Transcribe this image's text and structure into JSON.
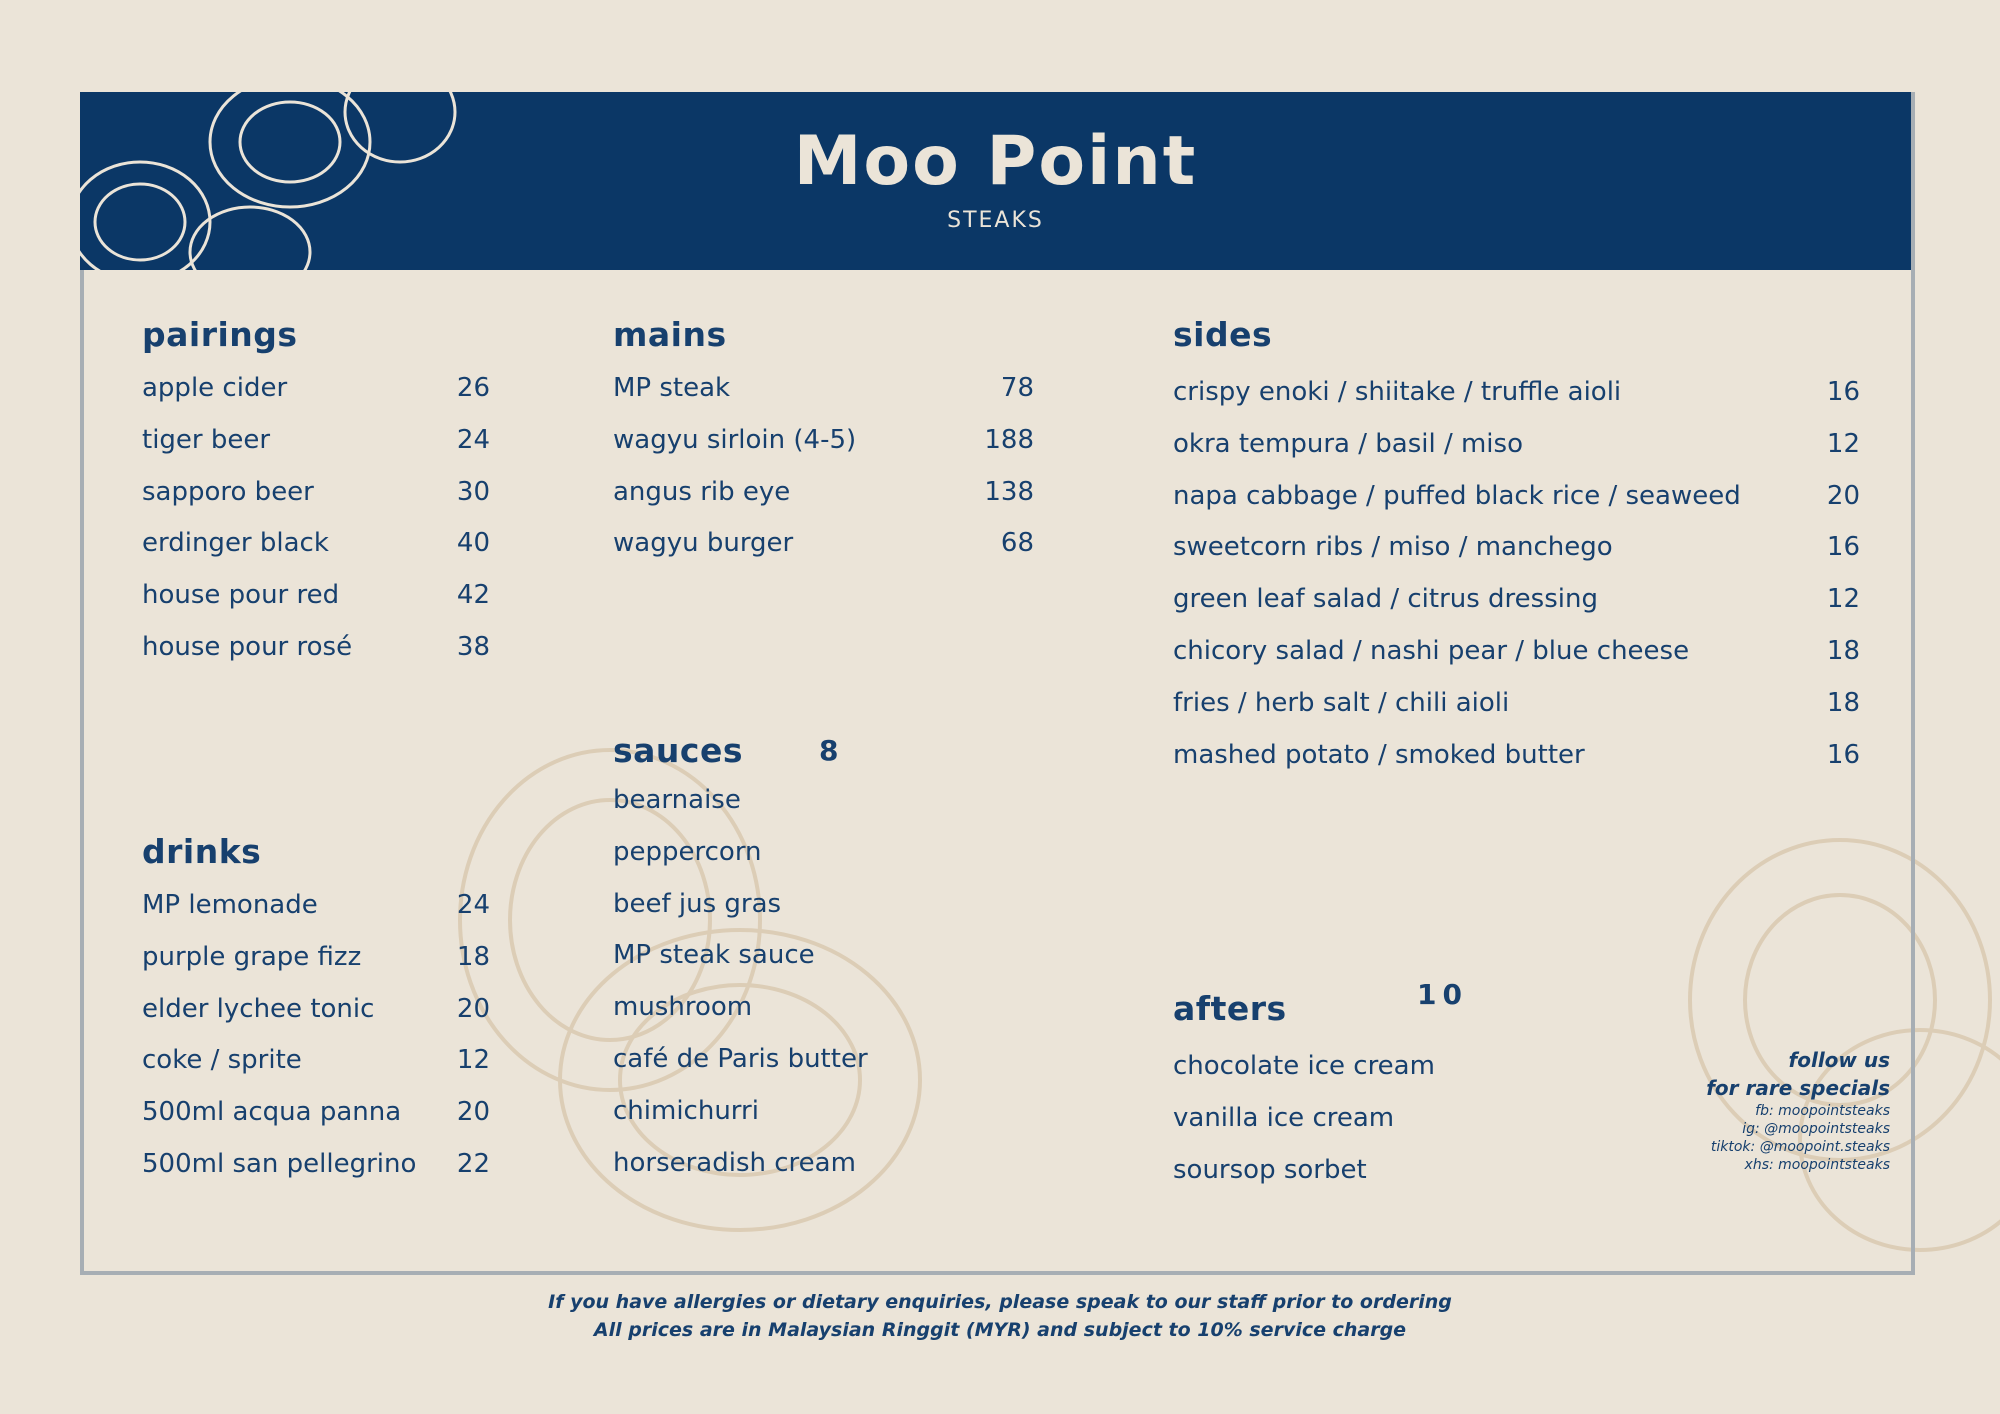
{
  "brand": {
    "name": "Moo Point",
    "subtitle": "STEAKS"
  },
  "pairings": {
    "title": "pairings",
    "items": [
      {
        "name": "apple cider",
        "price": "26"
      },
      {
        "name": "tiger beer",
        "price": "24"
      },
      {
        "name": "sapporo beer",
        "price": "30"
      },
      {
        "name": "erdinger black",
        "price": "40"
      },
      {
        "name": "house pour red",
        "price": "42"
      },
      {
        "name": "house pour rosé",
        "price": "38"
      }
    ]
  },
  "drinks": {
    "title": "drinks",
    "items": [
      {
        "name": "MP lemonade",
        "price": "24"
      },
      {
        "name": "purple grape fizz",
        "price": "18"
      },
      {
        "name": "elder lychee tonic",
        "price": "20"
      },
      {
        "name": "coke / sprite",
        "price": "12"
      },
      {
        "name": "500ml acqua panna",
        "price": "20"
      },
      {
        "name": "500ml san pellegrino",
        "price": "22"
      }
    ]
  },
  "mains": {
    "title": "mains",
    "items": [
      {
        "name": "MP steak",
        "price": "78"
      },
      {
        "name": "wagyu sirloin (4-5)",
        "price": "188"
      },
      {
        "name": "angus rib eye",
        "price": "138"
      },
      {
        "name": "wagyu burger",
        "price": "68"
      }
    ]
  },
  "sauces": {
    "title": "sauces",
    "price": "8",
    "items": [
      "bearnaise",
      "peppercorn",
      "beef jus gras",
      "MP steak sauce",
      "mushroom",
      "café de Paris butter",
      "chimichurri",
      "horseradish cream"
    ]
  },
  "sides": {
    "title": "sides",
    "items": [
      {
        "name": "crispy enoki / shiitake / truffle aioli",
        "price": "16"
      },
      {
        "name": "okra tempura / basil / miso",
        "price": "12"
      },
      {
        "name": "napa cabbage / puffed black rice / seaweed",
        "price": "20"
      },
      {
        "name": "sweetcorn ribs / miso / manchego",
        "price": "16"
      },
      {
        "name": "green leaf salad / citrus dressing",
        "price": "12"
      },
      {
        "name": "chicory salad / nashi pear / blue cheese",
        "price": "18"
      },
      {
        "name": "fries / herb salt / chili aioli",
        "price": "18"
      },
      {
        "name": "mashed potato / smoked butter",
        "price": "16"
      }
    ]
  },
  "afters": {
    "title": "afters",
    "price": "10",
    "items": [
      "chocolate ice cream",
      "vanilla ice cream",
      "soursop sorbet"
    ]
  },
  "follow": {
    "line1": "follow us",
    "line2": "for rare specials",
    "handles": [
      "fb: moopointsteaks",
      "ig: @moopointsteaks",
      "tiktok: @moopoint.steaks",
      "xhs: moopointsteaks"
    ]
  },
  "footer": {
    "line1": "If you have allergies or dietary enquiries, please speak to our staff prior to ordering",
    "line2": "All prices are in Malaysian Ringgit (MYR) and subject to 10% service charge"
  },
  "colors": {
    "navy": "#0b3766",
    "background": "#ebe4d8",
    "text": "#17406e"
  }
}
